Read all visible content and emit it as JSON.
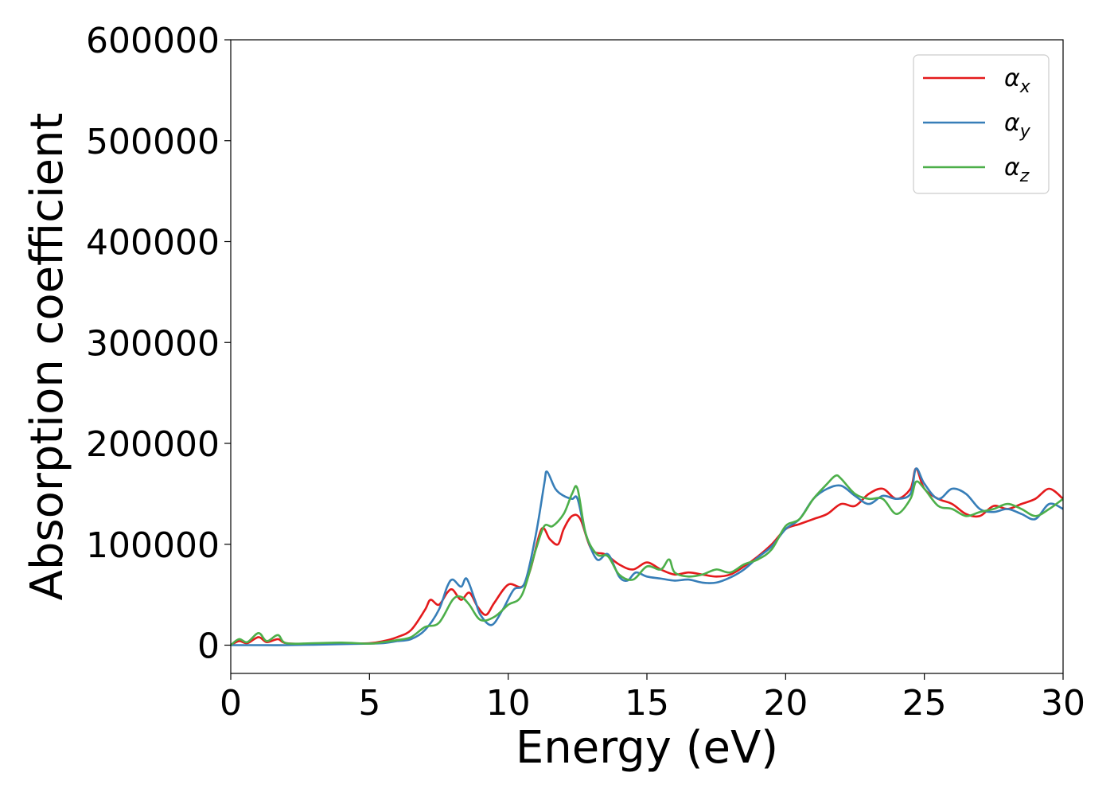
{
  "chart_data": {
    "type": "line",
    "xlabel": "Energy (eV)",
    "ylabel": "Absorption coefficient",
    "xlim": [
      0,
      30
    ],
    "ylim": [
      -28000,
      600000
    ],
    "xticks": [
      0,
      5,
      10,
      15,
      20,
      25,
      30
    ],
    "yticks": [
      0,
      100000,
      200000,
      300000,
      400000,
      500000,
      600000
    ],
    "grid": false,
    "legend_position": "top-right",
    "series": [
      {
        "name": "αx",
        "label_main": "α",
        "label_sub": "x",
        "color": "#e41a1c",
        "x": [
          0,
          0.3,
          0.6,
          1.0,
          1.3,
          1.7,
          2.0,
          3.0,
          4.0,
          5.0,
          5.5,
          6.0,
          6.5,
          7.0,
          7.2,
          7.5,
          7.8,
          8.0,
          8.3,
          8.6,
          8.9,
          9.2,
          9.5,
          10.0,
          10.5,
          10.8,
          11.2,
          11.5,
          11.8,
          12.0,
          12.3,
          12.6,
          13.0,
          13.5,
          14.0,
          14.5,
          15.0,
          15.5,
          16.0,
          16.5,
          17.0,
          17.5,
          18.0,
          18.5,
          19.0,
          19.5,
          20.0,
          20.5,
          21.0,
          21.5,
          22.0,
          22.5,
          23.0,
          23.5,
          24.0,
          24.5,
          24.7,
          25.0,
          25.5,
          26.0,
          26.5,
          27.0,
          27.5,
          28.0,
          28.5,
          29.0,
          29.5,
          30.0
        ],
        "y": [
          0,
          4000,
          2000,
          8000,
          3000,
          6000,
          2000,
          1000,
          1500,
          2000,
          4000,
          8000,
          15000,
          35000,
          45000,
          40000,
          52000,
          55000,
          45000,
          52000,
          38000,
          30000,
          42000,
          60000,
          58000,
          75000,
          115000,
          105000,
          100000,
          115000,
          128000,
          125000,
          95000,
          90000,
          80000,
          75000,
          82000,
          75000,
          70000,
          72000,
          70000,
          68000,
          70000,
          78000,
          88000,
          100000,
          115000,
          120000,
          125000,
          130000,
          140000,
          138000,
          150000,
          155000,
          145000,
          155000,
          175000,
          155000,
          145000,
          140000,
          130000,
          128000,
          138000,
          135000,
          140000,
          145000,
          155000,
          145000
        ]
      },
      {
        "name": "αy",
        "label_main": "α",
        "label_sub": "y",
        "color": "#377eb8",
        "x": [
          0,
          0.5,
          1.0,
          2.0,
          3.0,
          4.0,
          5.0,
          5.5,
          6.0,
          6.5,
          7.0,
          7.5,
          7.8,
          8.0,
          8.3,
          8.5,
          8.8,
          9.0,
          9.4,
          9.8,
          10.2,
          10.6,
          11.0,
          11.3,
          11.4,
          11.7,
          12.0,
          12.3,
          12.5,
          12.8,
          13.2,
          13.6,
          14.0,
          14.3,
          14.6,
          15.0,
          15.5,
          16.0,
          16.5,
          17.0,
          17.5,
          18.0,
          18.5,
          19.0,
          19.5,
          20.0,
          20.5,
          21.0,
          21.5,
          22.0,
          22.5,
          23.0,
          23.5,
          24.0,
          24.5,
          24.7,
          25.0,
          25.5,
          26.0,
          26.5,
          27.0,
          27.5,
          28.0,
          28.5,
          29.0,
          29.5,
          30.0
        ],
        "y": [
          0,
          0,
          0,
          0,
          500,
          1000,
          1500,
          2000,
          4000,
          6000,
          15000,
          35000,
          58000,
          65000,
          58000,
          66000,
          45000,
          30000,
          20000,
          35000,
          55000,
          62000,
          110000,
          160000,
          172000,
          155000,
          148000,
          145000,
          145000,
          110000,
          85000,
          90000,
          68000,
          64000,
          72000,
          68000,
          66000,
          64000,
          65000,
          62000,
          62000,
          67000,
          75000,
          87000,
          98000,
          115000,
          125000,
          145000,
          155000,
          158000,
          148000,
          140000,
          148000,
          145000,
          150000,
          175000,
          160000,
          145000,
          155000,
          150000,
          135000,
          132000,
          135000,
          130000,
          125000,
          140000,
          135000
        ]
      },
      {
        "name": "αz",
        "label_main": "α",
        "label_sub": "z",
        "color": "#4daf4a",
        "x": [
          0,
          0.3,
          0.6,
          1.0,
          1.3,
          1.7,
          2.0,
          3.0,
          4.0,
          5.0,
          5.5,
          6.0,
          6.5,
          7.0,
          7.5,
          8.0,
          8.3,
          8.6,
          9.0,
          9.5,
          10.0,
          10.5,
          11.0,
          11.3,
          11.6,
          12.0,
          12.3,
          12.5,
          12.8,
          13.2,
          13.6,
          14.0,
          14.5,
          15.0,
          15.5,
          15.8,
          16.0,
          16.5,
          17.0,
          17.5,
          18.0,
          18.5,
          19.0,
          19.5,
          20.0,
          20.5,
          21.0,
          21.5,
          21.8,
          22.0,
          22.5,
          23.0,
          23.5,
          24.0,
          24.5,
          24.7,
          25.0,
          25.5,
          26.0,
          26.5,
          27.0,
          27.5,
          28.0,
          28.5,
          29.0,
          29.5,
          30.0
        ],
        "y": [
          0,
          6000,
          3000,
          12000,
          4000,
          10000,
          2000,
          2000,
          2500,
          1500,
          3000,
          5000,
          8000,
          18000,
          22000,
          45000,
          48000,
          40000,
          25000,
          28000,
          40000,
          50000,
          95000,
          118000,
          118000,
          130000,
          150000,
          155000,
          110000,
          90000,
          88000,
          70000,
          65000,
          78000,
          75000,
          85000,
          72000,
          68000,
          70000,
          75000,
          72000,
          80000,
          85000,
          95000,
          118000,
          125000,
          145000,
          160000,
          168000,
          165000,
          150000,
          145000,
          145000,
          130000,
          145000,
          162000,
          155000,
          138000,
          135000,
          128000,
          132000,
          135000,
          140000,
          135000,
          128000,
          135000,
          145000
        ]
      }
    ]
  }
}
